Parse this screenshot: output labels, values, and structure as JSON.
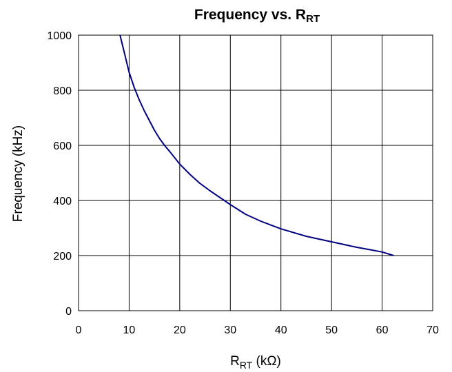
{
  "chart_data": {
    "type": "line",
    "title": {
      "main": "Frequency vs. R",
      "sub": "RT"
    },
    "xlabel": {
      "main": "R",
      "sub": "RT",
      "unit": " (kΩ)"
    },
    "ylabel": "Frequency (kHz)",
    "xlim": [
      0,
      70
    ],
    "ylim": [
      0,
      1000
    ],
    "xticks": [
      0,
      10,
      20,
      30,
      40,
      50,
      60,
      70
    ],
    "yticks": [
      0,
      200,
      400,
      600,
      800,
      1000
    ],
    "xtick_labels": [
      "0",
      "10",
      "20",
      "30",
      "40",
      "50",
      "60",
      "70"
    ],
    "ytick_labels": [
      "0",
      "200",
      "400",
      "600",
      "800",
      "1000"
    ],
    "grid": true,
    "legend": "none",
    "series": [
      {
        "color": "#000080",
        "x": [
          8.2,
          9,
          10,
          11,
          12,
          13,
          14,
          15,
          16,
          17,
          18,
          20,
          22,
          24,
          26,
          28,
          30,
          33,
          36,
          40,
          45,
          50,
          55,
          58,
          60,
          62.3
        ],
        "y": [
          1000,
          940,
          865,
          810,
          765,
          725,
          690,
          655,
          625,
          600,
          578,
          532,
          495,
          462,
          435,
          410,
          385,
          350,
          325,
          297,
          270,
          250,
          230,
          220,
          213,
          200
        ]
      }
    ]
  }
}
